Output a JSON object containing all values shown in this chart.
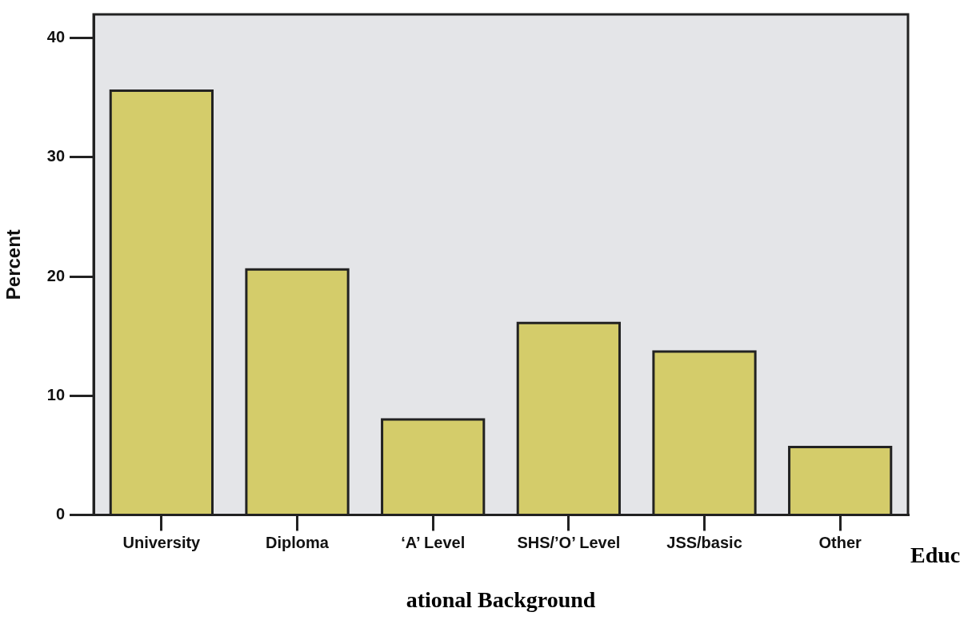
{
  "chart_data": {
    "type": "bar",
    "categories": [
      "University",
      "Diploma",
      "‘A’ Level",
      "SHS/’O’ Level",
      "JSS/basic",
      "Other"
    ],
    "values": [
      35.6,
      20.6,
      8.0,
      16.1,
      13.7,
      5.7
    ],
    "color": "#d4cc6a",
    "xlabel": "ational Background",
    "ylabel": "Percent",
    "annotations": [
      "Educ"
    ],
    "ylim": [
      0,
      42
    ],
    "yticks": [
      0,
      10,
      20,
      30,
      40
    ],
    "grid": false,
    "legend": false
  }
}
